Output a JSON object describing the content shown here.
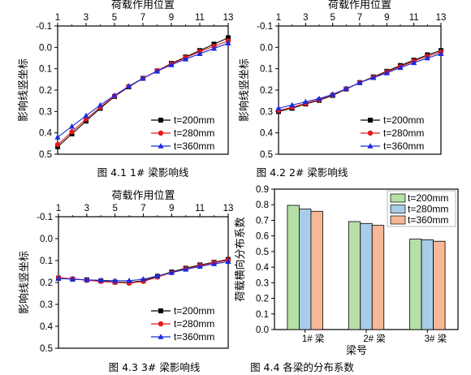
{
  "colors": {
    "t200": "#000000",
    "t280": "#e41a1c",
    "t360": "#1a2bdc",
    "bar200": "#b6e0a8",
    "bar280": "#a9cde8",
    "bar360": "#f6b896",
    "axis": "#000000",
    "grid": "#e6e6e6"
  },
  "chart_data": [
    {
      "type": "line",
      "caption": "图 4.1 1# 梁影响线",
      "xlabel": "荷载作用位置",
      "ylabel": "影响线竖坐标",
      "x_axis_position": "top",
      "y_inverted": true,
      "xlim": [
        1,
        13
      ],
      "ylim": [
        -0.1,
        0.5
      ],
      "xticks": [
        "1",
        "3",
        "5",
        "7",
        "9",
        "11",
        "13"
      ],
      "yticks": [
        "-0.1",
        "0.0",
        "0.1",
        "0.2",
        "0.3",
        "0.4",
        "0.5"
      ],
      "legend_position": "bottom-right",
      "x": [
        1,
        2,
        3,
        4,
        5,
        6,
        7,
        8,
        9,
        10,
        11,
        12,
        13
      ],
      "series": [
        {
          "name": "t=200mm",
          "color": "#000000",
          "marker": "square",
          "values": [
            0.465,
            0.405,
            0.345,
            0.285,
            0.23,
            0.185,
            0.145,
            0.11,
            0.075,
            0.045,
            0.015,
            -0.015,
            -0.045
          ]
        },
        {
          "name": "t=280mm",
          "color": "#e41a1c",
          "marker": "circle",
          "values": [
            0.455,
            0.395,
            0.335,
            0.28,
            0.228,
            0.183,
            0.145,
            0.11,
            0.078,
            0.048,
            0.02,
            -0.005,
            -0.03
          ]
        },
        {
          "name": "t=360mm",
          "color": "#1a2bdc",
          "marker": "triangle",
          "values": [
            0.42,
            0.37,
            0.32,
            0.27,
            0.225,
            0.182,
            0.145,
            0.112,
            0.082,
            0.055,
            0.03,
            0.005,
            -0.02
          ]
        }
      ]
    },
    {
      "type": "line",
      "caption": "图 4.2 2# 梁影响线",
      "xlabel": "荷载作用位置",
      "ylabel": "影响线竖坐标",
      "x_axis_position": "top",
      "y_inverted": true,
      "xlim": [
        1,
        13
      ],
      "ylim": [
        -0.1,
        0.5
      ],
      "xticks": [
        "1",
        "3",
        "5",
        "7",
        "9",
        "11",
        "13"
      ],
      "yticks": [
        "-0.1",
        "0.0",
        "0.1",
        "0.2",
        "0.3",
        "0.4",
        "0.5"
      ],
      "legend_position": "bottom-right",
      "x": [
        1,
        2,
        3,
        4,
        5,
        6,
        7,
        8,
        9,
        10,
        11,
        12,
        13
      ],
      "series": [
        {
          "name": "t=200mm",
          "color": "#000000",
          "marker": "square",
          "values": [
            0.3,
            0.285,
            0.265,
            0.248,
            0.225,
            0.195,
            0.165,
            0.138,
            0.112,
            0.085,
            0.06,
            0.035,
            0.015
          ]
        },
        {
          "name": "t=280mm",
          "color": "#e41a1c",
          "marker": "circle",
          "values": [
            0.295,
            0.28,
            0.262,
            0.245,
            0.222,
            0.195,
            0.165,
            0.14,
            0.115,
            0.09,
            0.065,
            0.042,
            0.022
          ]
        },
        {
          "name": "t=360mm",
          "color": "#1a2bdc",
          "marker": "triangle",
          "values": [
            0.285,
            0.27,
            0.255,
            0.24,
            0.22,
            0.193,
            0.165,
            0.142,
            0.12,
            0.095,
            0.072,
            0.05,
            0.03
          ]
        }
      ]
    },
    {
      "type": "line",
      "caption": "图 4.3 3# 梁影响线",
      "xlabel": "荷载作用位置",
      "ylabel": "影响线竖坐标",
      "x_axis_position": "top",
      "y_inverted": true,
      "xlim": [
        1,
        13
      ],
      "ylim": [
        -0.1,
        0.5
      ],
      "xticks": [
        "1",
        "3",
        "5",
        "7",
        "9",
        "11",
        "13"
      ],
      "yticks": [
        "-0.1",
        "0.0",
        "0.1",
        "0.2",
        "0.3",
        "0.4",
        "0.5"
      ],
      "legend_position": "bottom-right",
      "x": [
        1,
        2,
        3,
        4,
        5,
        6,
        7,
        8,
        9,
        10,
        11,
        12,
        13
      ],
      "series": [
        {
          "name": "t=200mm",
          "color": "#000000",
          "marker": "square",
          "values": [
            0.18,
            0.185,
            0.188,
            0.193,
            0.198,
            0.2,
            0.192,
            0.172,
            0.152,
            0.135,
            0.12,
            0.108,
            0.095
          ]
        },
        {
          "name": "t=280mm",
          "color": "#e41a1c",
          "marker": "circle",
          "values": [
            0.178,
            0.183,
            0.19,
            0.195,
            0.2,
            0.203,
            0.195,
            0.175,
            0.155,
            0.138,
            0.123,
            0.11,
            0.098
          ]
        },
        {
          "name": "t=360mm",
          "color": "#1a2bdc",
          "marker": "triangle",
          "values": [
            0.182,
            0.185,
            0.188,
            0.19,
            0.192,
            0.192,
            0.185,
            0.17,
            0.155,
            0.14,
            0.127,
            0.115,
            0.105
          ]
        }
      ]
    },
    {
      "type": "bar",
      "caption": "图 4.4 各梁的分布系数",
      "xlabel": "梁号",
      "ylabel": "荷载横向分布系数",
      "categories": [
        "1# 梁",
        "2# 梁",
        "3# 梁"
      ],
      "ylim": [
        0,
        0.9
      ],
      "yticks": [
        "0.0",
        "0.1",
        "0.2",
        "0.3",
        "0.4",
        "0.5",
        "0.6",
        "0.7",
        "0.8",
        "0.9"
      ],
      "legend_position": "top-right",
      "series": [
        {
          "name": "t=200mm",
          "color": "#b6e0a8",
          "values": [
            0.796,
            0.692,
            0.58
          ]
        },
        {
          "name": "t=280mm",
          "color": "#a9cde8",
          "values": [
            0.772,
            0.68,
            0.575
          ]
        },
        {
          "name": "t=360mm",
          "color": "#f6b896",
          "values": [
            0.758,
            0.668,
            0.566
          ]
        }
      ]
    }
  ]
}
